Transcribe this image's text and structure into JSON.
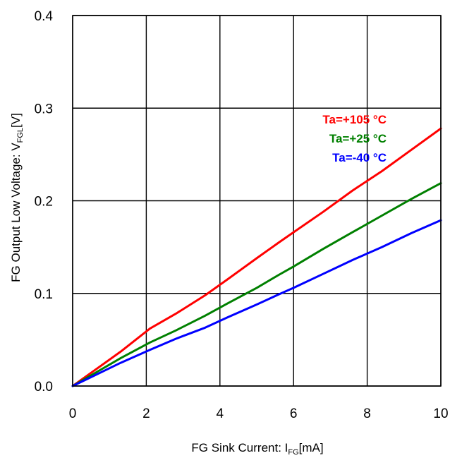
{
  "chart_data": {
    "type": "line",
    "xlabel": {
      "main": "FG Sink Current: I",
      "sub": "FG",
      "unit": "[mA]"
    },
    "ylabel": {
      "main": "FG Output Low Voltage: V",
      "sub": "FGL",
      "unit": "[V]"
    },
    "xlim": [
      0,
      10
    ],
    "ylim": [
      0,
      0.4
    ],
    "x_ticks": [
      "0",
      "2",
      "4",
      "6",
      "8",
      "10"
    ],
    "y_ticks": [
      "0.0",
      "0.1",
      "0.2",
      "0.3",
      "0.4"
    ],
    "grid": true,
    "legend_position": "top-right",
    "series": [
      {
        "name": "Ta=+105 °C",
        "color": "#ff0000",
        "x": [
          0,
          1.3,
          2.1,
          2.8,
          3.6,
          4.2,
          5.0,
          5.6,
          6.0,
          6.8,
          7.6,
          8.4,
          9.2,
          10.0
        ],
        "y": [
          0,
          0.037,
          0.062,
          0.078,
          0.098,
          0.115,
          0.138,
          0.155,
          0.166,
          0.188,
          0.211,
          0.232,
          0.255,
          0.278
        ]
      },
      {
        "name": "Ta=+25 °C",
        "color": "#008000",
        "x": [
          0,
          1.3,
          2.1,
          2.8,
          3.6,
          4.2,
          5.0,
          5.6,
          6.0,
          6.8,
          7.6,
          8.4,
          9.2,
          10.0
        ],
        "y": [
          0,
          0.03,
          0.047,
          0.06,
          0.076,
          0.089,
          0.106,
          0.12,
          0.129,
          0.148,
          0.166,
          0.184,
          0.202,
          0.219
        ]
      },
      {
        "name": "Ta=-40 °C",
        "color": "#0000ff",
        "x": [
          0,
          1.3,
          2.1,
          2.8,
          3.6,
          4.2,
          5.0,
          5.6,
          6.0,
          6.8,
          7.6,
          8.4,
          9.2,
          10.0
        ],
        "y": [
          0,
          0.025,
          0.039,
          0.051,
          0.063,
          0.074,
          0.088,
          0.099,
          0.106,
          0.121,
          0.136,
          0.15,
          0.165,
          0.179
        ]
      }
    ]
  }
}
